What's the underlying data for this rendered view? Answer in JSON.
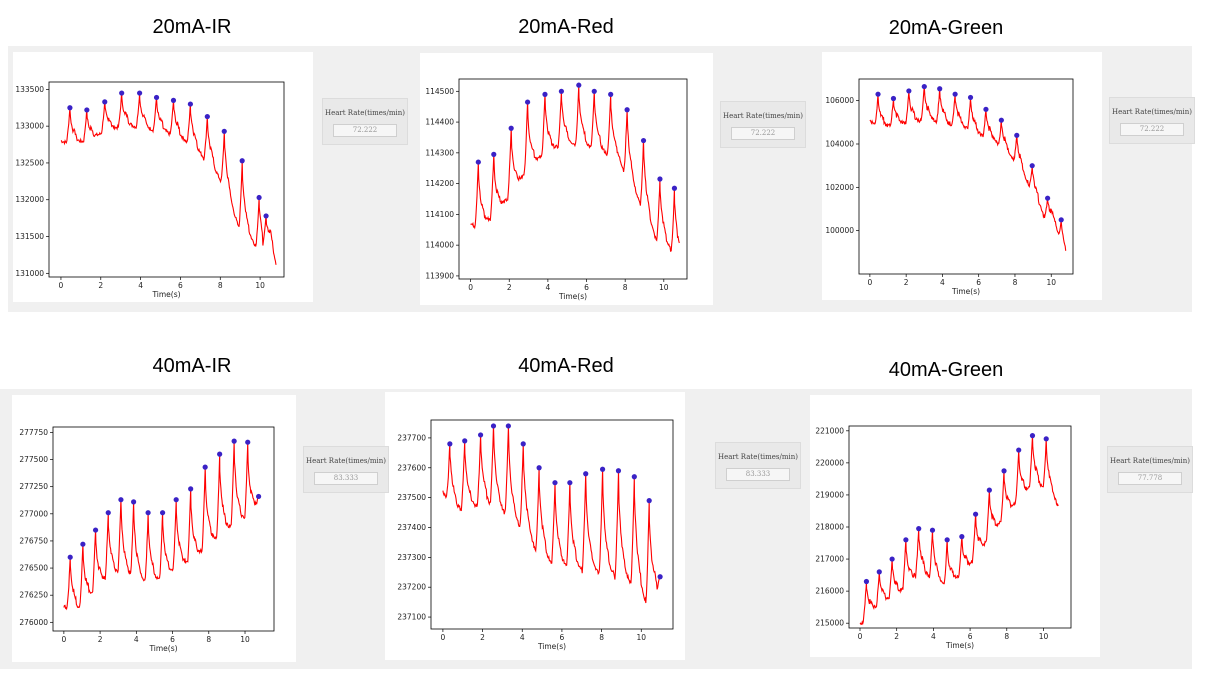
{
  "heart_rate_label": "Heart Rate(times/min)",
  "colors": {
    "line": "#ff0000",
    "marker": "#3a22c6",
    "panel": "#f0f0f0"
  },
  "xlabel": "Time(s)",
  "panels": [
    {
      "title": "20mA-IR",
      "heart_rate": "72.222"
    },
    {
      "title": "20mA-Red",
      "heart_rate": "72.222"
    },
    {
      "title": "20mA-Green",
      "heart_rate": "72.222"
    },
    {
      "title": "40mA-IR",
      "heart_rate": "83.333"
    },
    {
      "title": "40mA-Red",
      "heart_rate": "83.333"
    },
    {
      "title": "40mA-Green",
      "heart_rate": "77.778"
    }
  ],
  "chart_data": [
    {
      "type": "line",
      "title": "20mA-IR",
      "xlabel": "Time(s)",
      "ylabel": "",
      "xlim": [
        -0.6,
        11.2
      ],
      "ylim": [
        130950,
        133600
      ],
      "xticks": [
        0,
        2,
        4,
        6,
        8,
        10
      ],
      "yticks": [
        131000,
        131500,
        132000,
        132500,
        133000,
        133500
      ],
      "baseline": [
        [
          0,
          132800
        ],
        [
          0.6,
          132750
        ],
        [
          1.4,
          132800
        ],
        [
          2.4,
          132950
        ],
        [
          3.4,
          133000
        ],
        [
          4.4,
          132950
        ],
        [
          5.3,
          132900
        ],
        [
          6.2,
          132800
        ],
        [
          7.2,
          132550
        ],
        [
          8.0,
          132250
        ],
        [
          9.0,
          131550
        ],
        [
          10.0,
          131300
        ],
        [
          10.5,
          131450
        ],
        [
          10.8,
          131100
        ]
      ],
      "peaks": {
        "x": [
          0.45,
          1.3,
          2.2,
          3.05,
          3.95,
          4.8,
          5.65,
          6.5,
          7.35,
          8.2,
          9.1,
          9.95
        ],
        "y": [
          133250,
          133220,
          133330,
          133450,
          133450,
          133390,
          133350,
          133300,
          133130,
          132930,
          132530,
          132030
        ]
      },
      "peaks_extra": {
        "x": [
          10.3
        ],
        "y": [
          131780
        ]
      }
    },
    {
      "type": "line",
      "title": "20mA-Red",
      "xlabel": "Time(s)",
      "ylabel": "",
      "xlim": [
        -0.6,
        11.2
      ],
      "ylim": [
        113890,
        114540
      ],
      "xticks": [
        0,
        2,
        4,
        6,
        8,
        10
      ],
      "yticks": [
        113900,
        114000,
        114100,
        114200,
        114300,
        114400,
        114500
      ],
      "baseline": [
        [
          0,
          114070
        ],
        [
          0.5,
          114050
        ],
        [
          1.3,
          114100
        ],
        [
          2.2,
          114170
        ],
        [
          3.0,
          114250
        ],
        [
          4.0,
          114300
        ],
        [
          5.0,
          114330
        ],
        [
          5.8,
          114320
        ],
        [
          6.8,
          114300
        ],
        [
          7.7,
          114270
        ],
        [
          8.6,
          114150
        ],
        [
          9.6,
          114010
        ],
        [
          10.3,
          113980
        ],
        [
          10.8,
          113940
        ]
      ],
      "peaks": {
        "x": [
          0.4,
          1.2,
          2.1,
          2.95,
          3.85,
          4.7,
          5.6,
          6.4,
          7.25,
          8.1,
          8.95,
          9.8
        ],
        "y": [
          114270,
          114295,
          114380,
          114465,
          114490,
          114500,
          114520,
          114500,
          114490,
          114440,
          114340,
          114215
        ]
      },
      "peaks_extra": {
        "x": [
          10.55
        ],
        "y": [
          114185
        ]
      }
    },
    {
      "type": "line",
      "title": "20mA-Green",
      "xlabel": "Time(s)",
      "ylabel": "",
      "xlim": [
        -0.6,
        11.2
      ],
      "ylim": [
        98000,
        107000
      ],
      "xticks": [
        0,
        2,
        4,
        6,
        8,
        10
      ],
      "yticks": [
        100000,
        102000,
        104000,
        106000
      ],
      "baseline": [
        [
          0,
          105100
        ],
        [
          0.6,
          104700
        ],
        [
          1.5,
          104900
        ],
        [
          2.4,
          105000
        ],
        [
          3.3,
          105100
        ],
        [
          4.2,
          104900
        ],
        [
          5.1,
          104800
        ],
        [
          6.0,
          104400
        ],
        [
          6.9,
          104100
        ],
        [
          7.8,
          103400
        ],
        [
          8.7,
          102200
        ],
        [
          9.6,
          100600
        ],
        [
          10.2,
          100400
        ],
        [
          10.8,
          98500
        ]
      ],
      "peaks": {
        "x": [
          0.45,
          1.3,
          2.15,
          3.0,
          3.85,
          4.7,
          5.55,
          6.4,
          7.25,
          8.1,
          8.95,
          9.8
        ],
        "y": [
          106300,
          106100,
          106450,
          106650,
          106550,
          106300,
          106150,
          105600,
          105100,
          104400,
          103000,
          101500
        ]
      },
      "peaks_extra": {
        "x": [
          10.55
        ],
        "y": [
          100500
        ]
      }
    },
    {
      "type": "line",
      "title": "40mA-IR",
      "xlabel": "Time(s)",
      "ylabel": "",
      "xlim": [
        -0.6,
        11.6
      ],
      "ylim": [
        275920,
        277800
      ],
      "xticks": [
        0,
        2,
        4,
        6,
        8,
        10
      ],
      "yticks": [
        276000,
        276250,
        276500,
        276750,
        277000,
        277250,
        277500,
        277750
      ],
      "baseline": [
        [
          0,
          276150
        ],
        [
          0.7,
          276100
        ],
        [
          1.5,
          276250
        ],
        [
          2.3,
          276400
        ],
        [
          3.1,
          276450
        ],
        [
          3.9,
          276400
        ],
        [
          4.7,
          276350
        ],
        [
          5.5,
          276400
        ],
        [
          6.3,
          276500
        ],
        [
          7.1,
          276550
        ],
        [
          7.9,
          276700
        ],
        [
          8.7,
          276800
        ],
        [
          9.5,
          276900
        ],
        [
          10.3,
          276950
        ],
        [
          10.8,
          277150
        ]
      ],
      "peaks": {
        "x": [
          0.35,
          1.05,
          1.75,
          2.45,
          3.15,
          3.85,
          4.65,
          5.45,
          6.2,
          7.0,
          7.8,
          8.6,
          9.4,
          10.15
        ],
        "y": [
          276600,
          276720,
          276850,
          277010,
          277130,
          277110,
          277010,
          277010,
          277130,
          277230,
          277430,
          277550,
          277670,
          277660
        ]
      },
      "peaks_extra": {
        "x": [
          10.75
        ],
        "y": [
          277160
        ]
      }
    },
    {
      "type": "line",
      "title": "40mA-Red",
      "xlabel": "Time(s)",
      "ylabel": "",
      "xlim": [
        -0.6,
        11.6
      ],
      "ylim": [
        237060,
        237760
      ],
      "xticks": [
        0,
        2,
        4,
        6,
        8,
        10
      ],
      "yticks": [
        237100,
        237200,
        237300,
        237400,
        237500,
        237600,
        237700
      ],
      "baseline": [
        [
          0,
          237520
        ],
        [
          0.6,
          237450
        ],
        [
          1.3,
          237460
        ],
        [
          2.0,
          237470
        ],
        [
          2.7,
          237460
        ],
        [
          3.4,
          237420
        ],
        [
          4.1,
          237380
        ],
        [
          4.8,
          237300
        ],
        [
          5.6,
          237270
        ],
        [
          6.4,
          237260
        ],
        [
          7.2,
          237250
        ],
        [
          8.0,
          237240
        ],
        [
          8.8,
          237230
        ],
        [
          9.6,
          237200
        ],
        [
          10.3,
          237130
        ],
        [
          10.9,
          237200
        ]
      ],
      "peaks": {
        "x": [
          0.35,
          1.1,
          1.9,
          2.55,
          3.3,
          4.05,
          4.85,
          5.65,
          6.4,
          7.2,
          8.05,
          8.85,
          9.65,
          10.4
        ],
        "y": [
          237680,
          237690,
          237710,
          237740,
          237740,
          237680,
          237600,
          237550,
          237550,
          237580,
          237595,
          237590,
          237570,
          237490
        ]
      },
      "peaks_extra": {
        "x": [
          10.95
        ],
        "y": [
          237235
        ]
      }
    },
    {
      "type": "line",
      "title": "40mA-Green",
      "xlabel": "Time(s)",
      "ylabel": "",
      "xlim": [
        -0.6,
        11.5
      ],
      "ylim": [
        214850,
        221150
      ],
      "xticks": [
        0,
        2,
        4,
        6,
        8,
        10
      ],
      "yticks": [
        215000,
        216000,
        217000,
        218000,
        219000,
        220000,
        221000
      ],
      "baseline": [
        [
          0,
          214950
        ],
        [
          0.7,
          215400
        ],
        [
          1.5,
          215700
        ],
        [
          2.3,
          216000
        ],
        [
          3.1,
          216500
        ],
        [
          3.9,
          216400
        ],
        [
          4.7,
          216100
        ],
        [
          5.5,
          216500
        ],
        [
          6.3,
          217000
        ],
        [
          7.1,
          217700
        ],
        [
          7.9,
          218300
        ],
        [
          8.7,
          218900
        ],
        [
          9.5,
          219300
        ],
        [
          10.2,
          219100
        ],
        [
          10.8,
          218600
        ]
      ],
      "peaks": {
        "x": [
          0.35,
          1.05,
          1.75,
          2.5,
          3.2,
          3.95,
          4.75,
          5.55,
          6.3,
          7.05,
          7.85,
          8.65,
          9.4,
          10.15
        ],
        "y": [
          216300,
          216600,
          217000,
          217600,
          217950,
          217900,
          217600,
          217700,
          218400,
          219150,
          219750,
          220400,
          220850,
          220750
        ]
      },
      "peaks_extra": {
        "x": [],
        "y": []
      }
    }
  ]
}
